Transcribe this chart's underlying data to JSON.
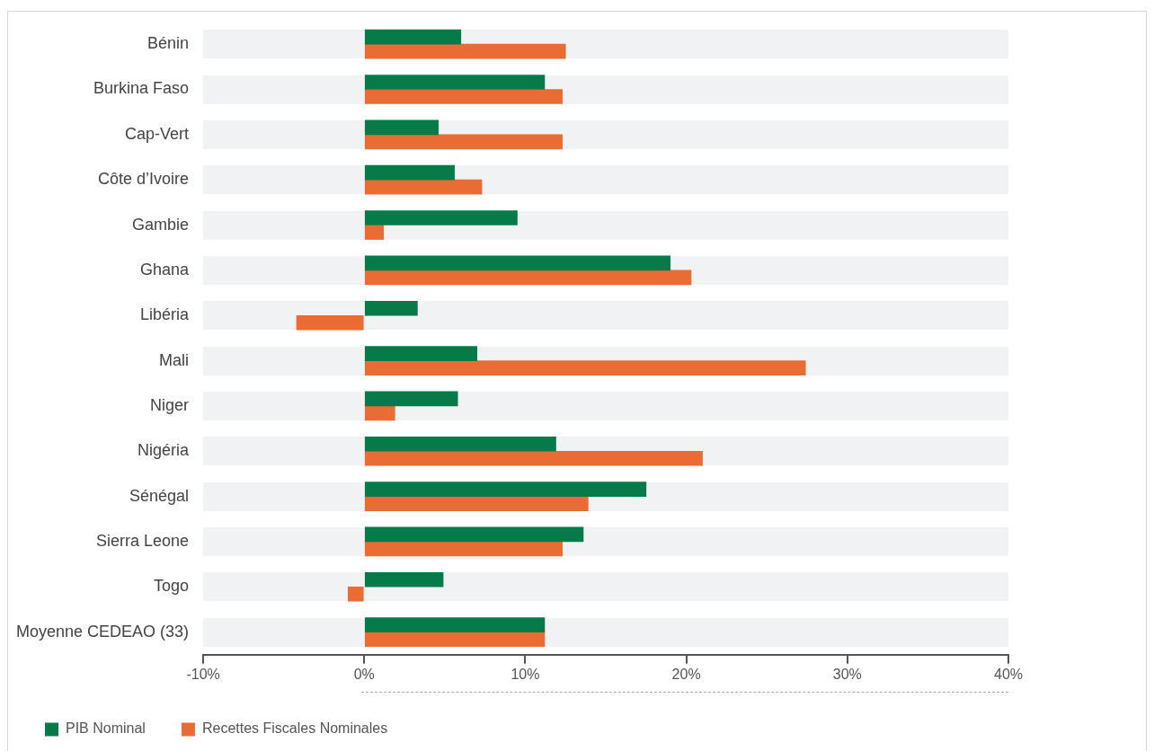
{
  "chart_data": {
    "type": "bar",
    "orientation": "horizontal",
    "categories": [
      "Bénin",
      "Burkina Faso",
      "Cap-Vert",
      "Côte d’Ivoire",
      "Gambie",
      "Ghana",
      "Libéria",
      "Mali",
      "Niger",
      "Nigéria",
      "Sénégal",
      "Sierra Leone",
      "Togo",
      "Moyenne CEDEAO (33)"
    ],
    "series": [
      {
        "name": "PIB Nominal",
        "color": "#077a4a",
        "values": [
          6.0,
          11.2,
          4.6,
          5.6,
          9.5,
          19.0,
          3.3,
          7.0,
          5.8,
          11.9,
          17.5,
          13.6,
          4.9,
          11.2
        ]
      },
      {
        "name": "Recettes Fiscales Nominales",
        "color": "#e86c33",
        "values": [
          12.5,
          12.3,
          12.3,
          7.3,
          1.2,
          20.3,
          -4.2,
          27.4,
          1.9,
          21.0,
          13.9,
          12.3,
          -1.0,
          11.2
        ]
      }
    ],
    "xlim": [
      -10,
      40
    ],
    "xticks": [
      {
        "value": -10,
        "label": "-10%"
      },
      {
        "value": 0,
        "label": "0%"
      },
      {
        "value": 10,
        "label": "10%"
      },
      {
        "value": 20,
        "label": "20%"
      },
      {
        "value": 30,
        "label": "30%"
      },
      {
        "value": 40,
        "label": "40%"
      }
    ],
    "grid": false,
    "legend": "bottom"
  }
}
